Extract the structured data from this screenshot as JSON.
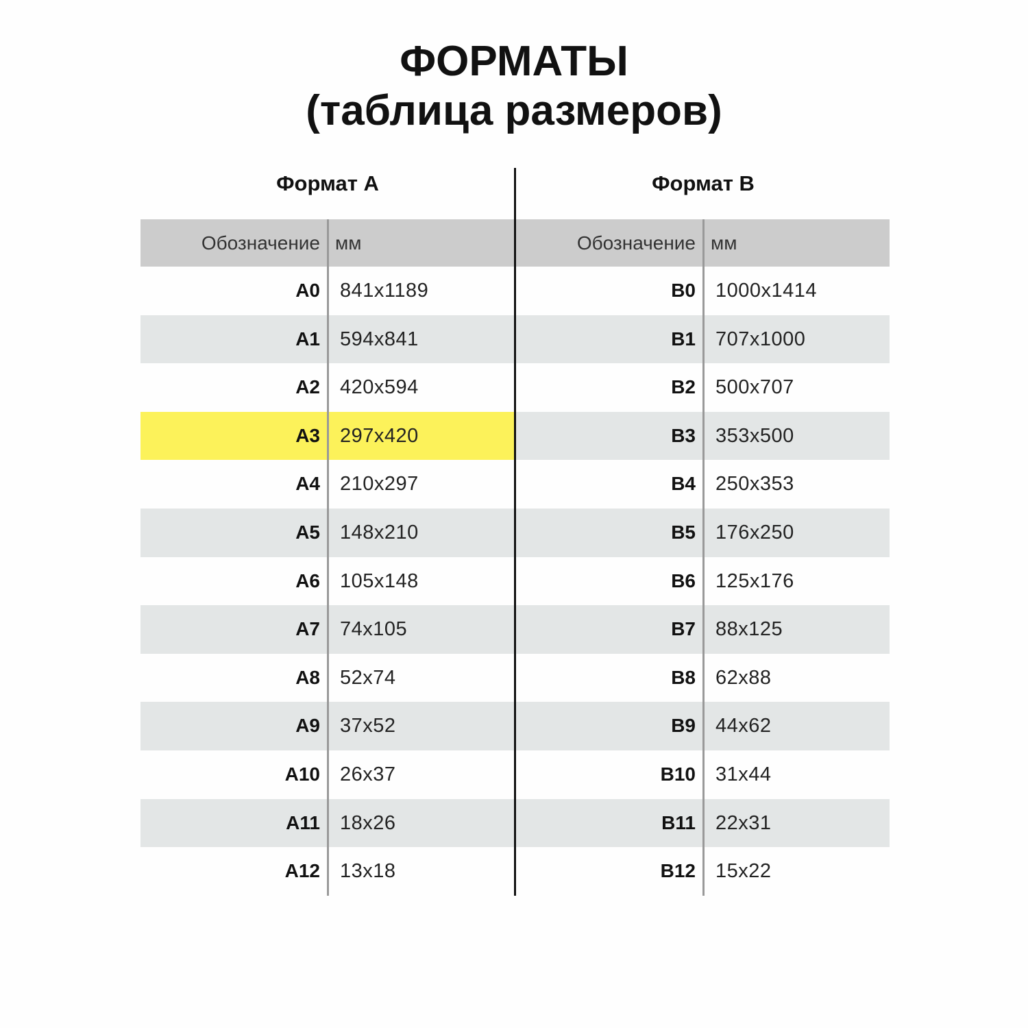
{
  "title": {
    "line1": "ФОРМАТЫ",
    "line2": "(таблица размеров)"
  },
  "colors": {
    "header": "#cccccc",
    "stripe": "#e3e6e6",
    "highlight": "#fcf25a"
  },
  "tables": [
    {
      "heading": "Формат A",
      "col_designation": "Обозначение",
      "col_mm": "мм",
      "highlighted": "A3",
      "rows": [
        {
          "name": "A0",
          "mm": "841x1189"
        },
        {
          "name": "A1",
          "mm": "594x841"
        },
        {
          "name": "A2",
          "mm": "420x594"
        },
        {
          "name": "A3",
          "mm": "297x420"
        },
        {
          "name": "A4",
          "mm": "210x297"
        },
        {
          "name": "A5",
          "mm": "148x210"
        },
        {
          "name": "A6",
          "mm": "105x148"
        },
        {
          "name": "A7",
          "mm": "74x105"
        },
        {
          "name": "A8",
          "mm": "52x74"
        },
        {
          "name": "A9",
          "mm": "37x52"
        },
        {
          "name": "A10",
          "mm": "26x37"
        },
        {
          "name": "A11",
          "mm": "18x26"
        },
        {
          "name": "A12",
          "mm": "13x18"
        }
      ]
    },
    {
      "heading": "Формат B",
      "col_designation": "Обозначение",
      "col_mm": "мм",
      "highlighted": "",
      "rows": [
        {
          "name": "B0",
          "mm": "1000x1414"
        },
        {
          "name": "B1",
          "mm": "707x1000"
        },
        {
          "name": "B2",
          "mm": "500x707"
        },
        {
          "name": "B3",
          "mm": "353x500"
        },
        {
          "name": "B4",
          "mm": "250x353"
        },
        {
          "name": "B5",
          "mm": "176x250"
        },
        {
          "name": "B6",
          "mm": "125x176"
        },
        {
          "name": "B7",
          "mm": "88x125"
        },
        {
          "name": "B8",
          "mm": "62x88"
        },
        {
          "name": "B9",
          "mm": "44x62"
        },
        {
          "name": "B10",
          "mm": "31x44"
        },
        {
          "name": "B11",
          "mm": "22x31"
        },
        {
          "name": "B12",
          "mm": "15x22"
        }
      ]
    }
  ]
}
